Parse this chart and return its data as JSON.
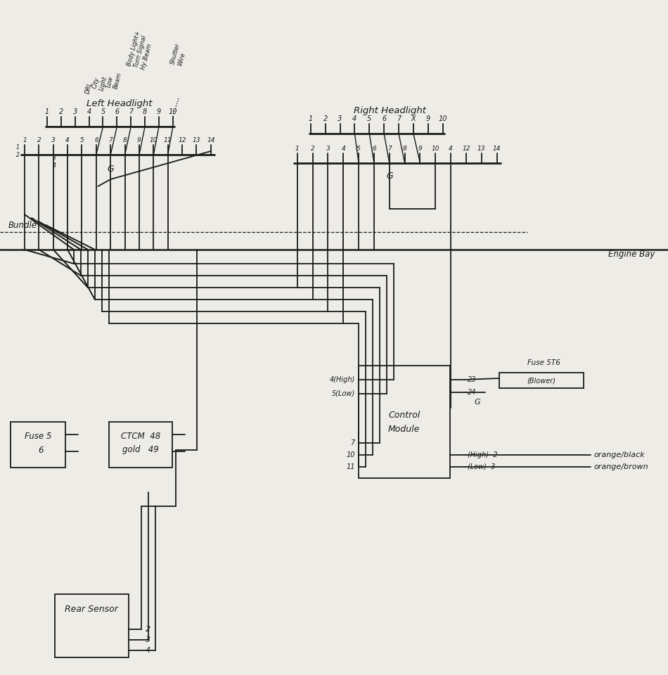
{
  "bg_color": "#eeece6",
  "lc": "#1a1a1a",
  "left_hl_label": "Left Headlight",
  "right_hl_label": "Right Headlight",
  "bundle_label": "Bundle",
  "engine_bay_label": "Engine Bay",
  "left_top_labels": [
    "DRL",
    "City Light",
    "Low Beam",
    "Body Light+\nTurn Signal\nHy Beam",
    "Shutter\nWire"
  ],
  "fuse_label_1": "Fuse 5",
  "fuse_label_2": "6",
  "ctcm_label_1": "CTCM  48",
  "ctcm_label_2": "gold   49",
  "ctrl_label_1": "Control",
  "ctrl_label_2": "Module",
  "fuse2_label": "Fuse 5T6",
  "blower_label": "(Blower)",
  "rear_sensor_label": "Rear Sensor",
  "orange_black": "orange/black",
  "orange_brown": "orange/brown"
}
